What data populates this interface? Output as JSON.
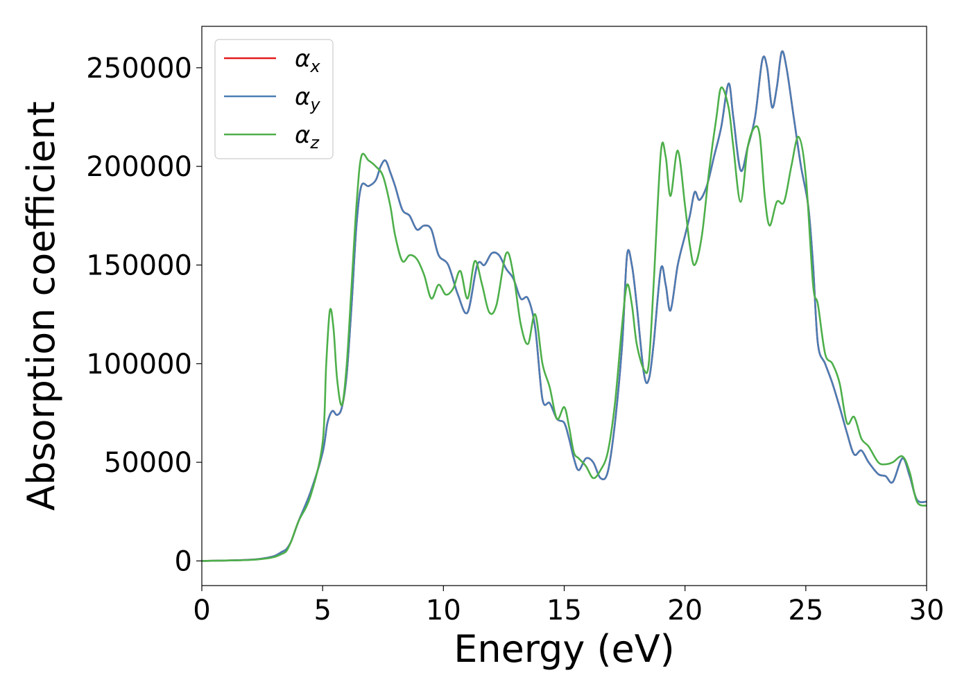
{
  "chart_data": {
    "type": "line",
    "title": "",
    "xlabel": "Energy (eV)",
    "ylabel": "Absorption coefficient",
    "xlim": [
      0,
      30
    ],
    "ylim": [
      -12500,
      271000
    ],
    "xticks": [
      0,
      5,
      10,
      15,
      20,
      25,
      30
    ],
    "yticks": [
      0,
      50000,
      100000,
      150000,
      200000,
      250000
    ],
    "grid": false,
    "legend_placement": "top-left",
    "series": [
      {
        "name": "α",
        "subscript": "x",
        "color": "#e41a1c",
        "points": [
          [
            0,
            0
          ],
          [
            1,
            200
          ],
          [
            2,
            600
          ],
          [
            2.5,
            1200
          ],
          [
            3,
            2500
          ],
          [
            3.3,
            4500
          ],
          [
            3.5,
            6000
          ],
          [
            3.7,
            10000
          ],
          [
            4,
            20000
          ],
          [
            4.5,
            35000
          ],
          [
            5,
            55000
          ],
          [
            5.2,
            70000
          ],
          [
            5.4,
            76000
          ],
          [
            5.6,
            74000
          ],
          [
            5.8,
            78000
          ],
          [
            6,
            95000
          ],
          [
            6.2,
            130000
          ],
          [
            6.4,
            170000
          ],
          [
            6.6,
            190000
          ],
          [
            6.9,
            190000
          ],
          [
            7.2,
            193000
          ],
          [
            7.4,
            200000
          ],
          [
            7.6,
            203000
          ],
          [
            7.8,
            197000
          ],
          [
            8,
            190000
          ],
          [
            8.3,
            178000
          ],
          [
            8.6,
            175000
          ],
          [
            8.9,
            168000
          ],
          [
            9.2,
            170000
          ],
          [
            9.5,
            168000
          ],
          [
            9.8,
            155000
          ],
          [
            10.2,
            150000
          ],
          [
            10.6,
            135000
          ],
          [
            11,
            126000
          ],
          [
            11.4,
            150000
          ],
          [
            11.7,
            150000
          ],
          [
            12,
            156000
          ],
          [
            12.3,
            155000
          ],
          [
            12.6,
            148000
          ],
          [
            12.9,
            143000
          ],
          [
            13.2,
            133000
          ],
          [
            13.5,
            133000
          ],
          [
            13.8,
            118000
          ],
          [
            14.1,
            82000
          ],
          [
            14.4,
            80000
          ],
          [
            14.7,
            72000
          ],
          [
            15,
            70000
          ],
          [
            15.2,
            62000
          ],
          [
            15.4,
            52000
          ],
          [
            15.6,
            46000
          ],
          [
            15.9,
            52000
          ],
          [
            16.2,
            50000
          ],
          [
            16.5,
            42000
          ],
          [
            16.8,
            45000
          ],
          [
            17.1,
            70000
          ],
          [
            17.4,
            110000
          ],
          [
            17.6,
            155000
          ],
          [
            17.8,
            150000
          ],
          [
            18,
            130000
          ],
          [
            18.3,
            95000
          ],
          [
            18.5,
            92000
          ],
          [
            18.7,
            110000
          ],
          [
            19,
            148000
          ],
          [
            19.2,
            140000
          ],
          [
            19.4,
            127000
          ],
          [
            19.7,
            150000
          ],
          [
            20,
            165000
          ],
          [
            20.2,
            175000
          ],
          [
            20.4,
            187000
          ],
          [
            20.6,
            183000
          ],
          [
            20.9,
            190000
          ],
          [
            21.2,
            205000
          ],
          [
            21.5,
            220000
          ],
          [
            21.8,
            242000
          ],
          [
            22,
            225000
          ],
          [
            22.3,
            198000
          ],
          [
            22.6,
            210000
          ],
          [
            22.9,
            225000
          ],
          [
            23.2,
            254000
          ],
          [
            23.4,
            250000
          ],
          [
            23.6,
            230000
          ],
          [
            23.8,
            240000
          ],
          [
            24,
            258000
          ],
          [
            24.2,
            250000
          ],
          [
            24.5,
            225000
          ],
          [
            24.8,
            200000
          ],
          [
            25.1,
            180000
          ],
          [
            25.3,
            150000
          ],
          [
            25.5,
            110000
          ],
          [
            25.8,
            100000
          ],
          [
            26.1,
            90000
          ],
          [
            26.4,
            78000
          ],
          [
            26.7,
            65000
          ],
          [
            27,
            54000
          ],
          [
            27.3,
            56000
          ],
          [
            27.6,
            50000
          ],
          [
            28,
            44000
          ],
          [
            28.3,
            43000
          ],
          [
            28.6,
            40000
          ],
          [
            29,
            52000
          ],
          [
            29.3,
            43000
          ],
          [
            29.6,
            31000
          ],
          [
            30,
            30000
          ]
        ]
      },
      {
        "name": "α",
        "subscript": "y",
        "color": "#4a7db5",
        "points": [
          [
            0,
            0
          ],
          [
            1,
            200
          ],
          [
            2,
            600
          ],
          [
            2.5,
            1200
          ],
          [
            3,
            2500
          ],
          [
            3.3,
            4500
          ],
          [
            3.5,
            6000
          ],
          [
            3.7,
            10000
          ],
          [
            4,
            20000
          ],
          [
            4.5,
            35000
          ],
          [
            5,
            55000
          ],
          [
            5.2,
            70000
          ],
          [
            5.4,
            76000
          ],
          [
            5.6,
            74000
          ],
          [
            5.8,
            78000
          ],
          [
            6,
            95000
          ],
          [
            6.2,
            130000
          ],
          [
            6.4,
            170000
          ],
          [
            6.6,
            190000
          ],
          [
            6.9,
            190000
          ],
          [
            7.2,
            193000
          ],
          [
            7.4,
            200000
          ],
          [
            7.6,
            203000
          ],
          [
            7.8,
            197000
          ],
          [
            8,
            190000
          ],
          [
            8.3,
            178000
          ],
          [
            8.6,
            175000
          ],
          [
            8.9,
            168000
          ],
          [
            9.2,
            170000
          ],
          [
            9.5,
            168000
          ],
          [
            9.8,
            155000
          ],
          [
            10.2,
            150000
          ],
          [
            10.6,
            135000
          ],
          [
            11,
            126000
          ],
          [
            11.4,
            150000
          ],
          [
            11.7,
            150000
          ],
          [
            12,
            156000
          ],
          [
            12.3,
            155000
          ],
          [
            12.6,
            148000
          ],
          [
            12.9,
            143000
          ],
          [
            13.2,
            133000
          ],
          [
            13.5,
            133000
          ],
          [
            13.8,
            118000
          ],
          [
            14.1,
            82000
          ],
          [
            14.4,
            80000
          ],
          [
            14.7,
            72000
          ],
          [
            15,
            70000
          ],
          [
            15.2,
            62000
          ],
          [
            15.4,
            52000
          ],
          [
            15.6,
            46000
          ],
          [
            15.9,
            52000
          ],
          [
            16.2,
            50000
          ],
          [
            16.5,
            42000
          ],
          [
            16.8,
            45000
          ],
          [
            17.1,
            70000
          ],
          [
            17.4,
            110000
          ],
          [
            17.6,
            155000
          ],
          [
            17.8,
            150000
          ],
          [
            18,
            130000
          ],
          [
            18.3,
            95000
          ],
          [
            18.5,
            92000
          ],
          [
            18.7,
            110000
          ],
          [
            19,
            148000
          ],
          [
            19.2,
            140000
          ],
          [
            19.4,
            127000
          ],
          [
            19.7,
            150000
          ],
          [
            20,
            165000
          ],
          [
            20.2,
            175000
          ],
          [
            20.4,
            187000
          ],
          [
            20.6,
            183000
          ],
          [
            20.9,
            190000
          ],
          [
            21.2,
            205000
          ],
          [
            21.5,
            220000
          ],
          [
            21.8,
            242000
          ],
          [
            22,
            225000
          ],
          [
            22.3,
            198000
          ],
          [
            22.6,
            210000
          ],
          [
            22.9,
            225000
          ],
          [
            23.2,
            254000
          ],
          [
            23.4,
            250000
          ],
          [
            23.6,
            230000
          ],
          [
            23.8,
            240000
          ],
          [
            24,
            258000
          ],
          [
            24.2,
            250000
          ],
          [
            24.5,
            225000
          ],
          [
            24.8,
            200000
          ],
          [
            25.1,
            180000
          ],
          [
            25.3,
            150000
          ],
          [
            25.5,
            110000
          ],
          [
            25.8,
            100000
          ],
          [
            26.1,
            90000
          ],
          [
            26.4,
            78000
          ],
          [
            26.7,
            65000
          ],
          [
            27,
            54000
          ],
          [
            27.3,
            56000
          ],
          [
            27.6,
            50000
          ],
          [
            28,
            44000
          ],
          [
            28.3,
            43000
          ],
          [
            28.6,
            40000
          ],
          [
            29,
            52000
          ],
          [
            29.3,
            43000
          ],
          [
            29.6,
            31000
          ],
          [
            30,
            30000
          ]
        ]
      },
      {
        "name": "α",
        "subscript": "z",
        "color": "#4daf4a",
        "points": [
          [
            0,
            0
          ],
          [
            1,
            200
          ],
          [
            2,
            500
          ],
          [
            2.5,
            1000
          ],
          [
            3,
            2000
          ],
          [
            3.3,
            3500
          ],
          [
            3.5,
            5000
          ],
          [
            3.7,
            10000
          ],
          [
            4,
            20000
          ],
          [
            4.5,
            33000
          ],
          [
            5,
            60000
          ],
          [
            5.15,
            100000
          ],
          [
            5.3,
            127000
          ],
          [
            5.45,
            118000
          ],
          [
            5.6,
            92000
          ],
          [
            5.8,
            79000
          ],
          [
            6,
            100000
          ],
          [
            6.2,
            140000
          ],
          [
            6.4,
            180000
          ],
          [
            6.6,
            205000
          ],
          [
            6.9,
            203000
          ],
          [
            7.2,
            200000
          ],
          [
            7.5,
            195000
          ],
          [
            7.8,
            180000
          ],
          [
            8,
            165000
          ],
          [
            8.3,
            152000
          ],
          [
            8.6,
            155000
          ],
          [
            8.9,
            153000
          ],
          [
            9.2,
            145000
          ],
          [
            9.5,
            133000
          ],
          [
            9.8,
            140000
          ],
          [
            10.1,
            135000
          ],
          [
            10.4,
            138000
          ],
          [
            10.7,
            147000
          ],
          [
            11,
            133000
          ],
          [
            11.3,
            152000
          ],
          [
            11.6,
            140000
          ],
          [
            11.9,
            126000
          ],
          [
            12.2,
            130000
          ],
          [
            12.6,
            156000
          ],
          [
            12.9,
            145000
          ],
          [
            13.2,
            120000
          ],
          [
            13.5,
            110000
          ],
          [
            13.8,
            125000
          ],
          [
            14.1,
            100000
          ],
          [
            14.4,
            88000
          ],
          [
            14.7,
            72000
          ],
          [
            15,
            78000
          ],
          [
            15.2,
            68000
          ],
          [
            15.4,
            55000
          ],
          [
            15.6,
            52000
          ],
          [
            15.9,
            48000
          ],
          [
            16.2,
            42000
          ],
          [
            16.5,
            46000
          ],
          [
            16.8,
            55000
          ],
          [
            17.1,
            80000
          ],
          [
            17.4,
            120000
          ],
          [
            17.6,
            140000
          ],
          [
            17.8,
            130000
          ],
          [
            18,
            110000
          ],
          [
            18.3,
            97000
          ],
          [
            18.5,
            100000
          ],
          [
            18.7,
            140000
          ],
          [
            19,
            207000
          ],
          [
            19.2,
            205000
          ],
          [
            19.4,
            185000
          ],
          [
            19.7,
            208000
          ],
          [
            20,
            180000
          ],
          [
            20.2,
            160000
          ],
          [
            20.4,
            150000
          ],
          [
            20.7,
            165000
          ],
          [
            21,
            198000
          ],
          [
            21.3,
            225000
          ],
          [
            21.5,
            240000
          ],
          [
            21.8,
            230000
          ],
          [
            22,
            210000
          ],
          [
            22.3,
            182000
          ],
          [
            22.6,
            210000
          ],
          [
            22.9,
            220000
          ],
          [
            23.1,
            215000
          ],
          [
            23.3,
            185000
          ],
          [
            23.5,
            170000
          ],
          [
            23.8,
            182000
          ],
          [
            24.1,
            182000
          ],
          [
            24.4,
            200000
          ],
          [
            24.7,
            215000
          ],
          [
            25,
            195000
          ],
          [
            25.3,
            140000
          ],
          [
            25.5,
            130000
          ],
          [
            25.8,
            105000
          ],
          [
            26.1,
            100000
          ],
          [
            26.4,
            90000
          ],
          [
            26.7,
            70000
          ],
          [
            27,
            73000
          ],
          [
            27.3,
            62000
          ],
          [
            27.6,
            58000
          ],
          [
            28,
            50000
          ],
          [
            28.3,
            49000
          ],
          [
            28.6,
            50000
          ],
          [
            29,
            53000
          ],
          [
            29.3,
            45000
          ],
          [
            29.6,
            30000
          ],
          [
            30,
            28000
          ]
        ]
      }
    ]
  }
}
